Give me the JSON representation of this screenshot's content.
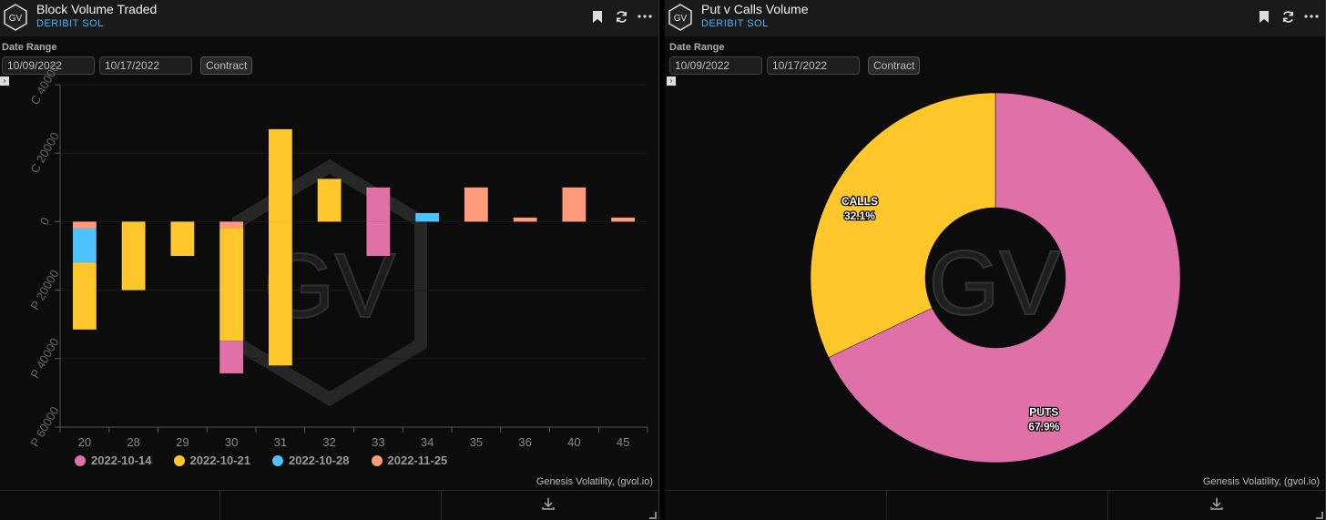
{
  "panels": [
    {
      "title": "Block Volume Traded",
      "subtitle": "DERIBIT SOL",
      "date_label": "Date Range",
      "date_from": "10/09/2022",
      "date_to": "10/17/2022",
      "contract_label": "Contract",
      "credit": "Genesis Volatility, (gvol.io)"
    },
    {
      "title": "Put v Calls Volume",
      "subtitle": "DERIBIT SOL",
      "date_label": "Date Range",
      "date_from": "10/09/2022",
      "date_to": "10/17/2022",
      "contract_label": "Contract",
      "credit": "Genesis Volatility, (gvol.io)"
    }
  ],
  "logo_text": "GV",
  "watermark": "GV",
  "chart_data": [
    {
      "type": "bar",
      "stacked": true,
      "categories": [
        "20",
        "28",
        "29",
        "30",
        "31",
        "32",
        "33",
        "34",
        "35",
        "36",
        "40",
        "45"
      ],
      "ylim": [
        -60000,
        40000
      ],
      "y_ticks": [
        {
          "value": 40000,
          "label": "C 40000"
        },
        {
          "value": 20000,
          "label": "C 20000"
        },
        {
          "value": 0,
          "label": "0"
        },
        {
          "value": -20000,
          "label": "P 20000"
        },
        {
          "value": -40000,
          "label": "P 40000"
        },
        {
          "value": -60000,
          "label": "P 60000"
        }
      ],
      "series": [
        {
          "name": "2022-10-14",
          "color": "#e070a8",
          "values": [
            0,
            0,
            0,
            -9500,
            0,
            0,
            10000,
            0,
            0,
            0,
            0,
            0
          ],
          "negative_values": [
            0,
            0,
            0,
            -9500,
            0,
            0,
            -10000,
            0,
            0,
            0,
            0,
            0
          ]
        },
        {
          "name": "2022-10-21",
          "color": "#ffc72c",
          "values": [
            0,
            0,
            0,
            0,
            27000,
            12500,
            0,
            0,
            0,
            0,
            0,
            0
          ],
          "negative_values": [
            -19500,
            -20000,
            -10000,
            -33000,
            -42000,
            0,
            0,
            0,
            0,
            0,
            0,
            0
          ]
        },
        {
          "name": "2022-10-28",
          "color": "#4cc3ff",
          "values": [
            0,
            0,
            0,
            0,
            0,
            0,
            0,
            2500,
            0,
            0,
            0,
            0
          ],
          "negative_values": [
            -10000,
            0,
            0,
            0,
            0,
            0,
            0,
            0,
            0,
            0,
            0,
            0
          ]
        },
        {
          "name": "2022-11-25",
          "color": "#ff9b7a",
          "values": [
            0,
            0,
            0,
            0,
            0,
            0,
            0,
            0,
            10000,
            1200,
            10000,
            1200
          ],
          "negative_values": [
            -2000,
            0,
            0,
            -1800,
            0,
            0,
            0,
            0,
            0,
            0,
            0,
            0
          ]
        }
      ]
    },
    {
      "type": "pie",
      "donut": true,
      "slices": [
        {
          "label": "PUTS",
          "value": 67.9,
          "display": "67.9%",
          "color": "#e070a8"
        },
        {
          "label": "CALLS",
          "value": 32.1,
          "display": "32.1%",
          "color": "#ffc72c"
        }
      ]
    }
  ]
}
